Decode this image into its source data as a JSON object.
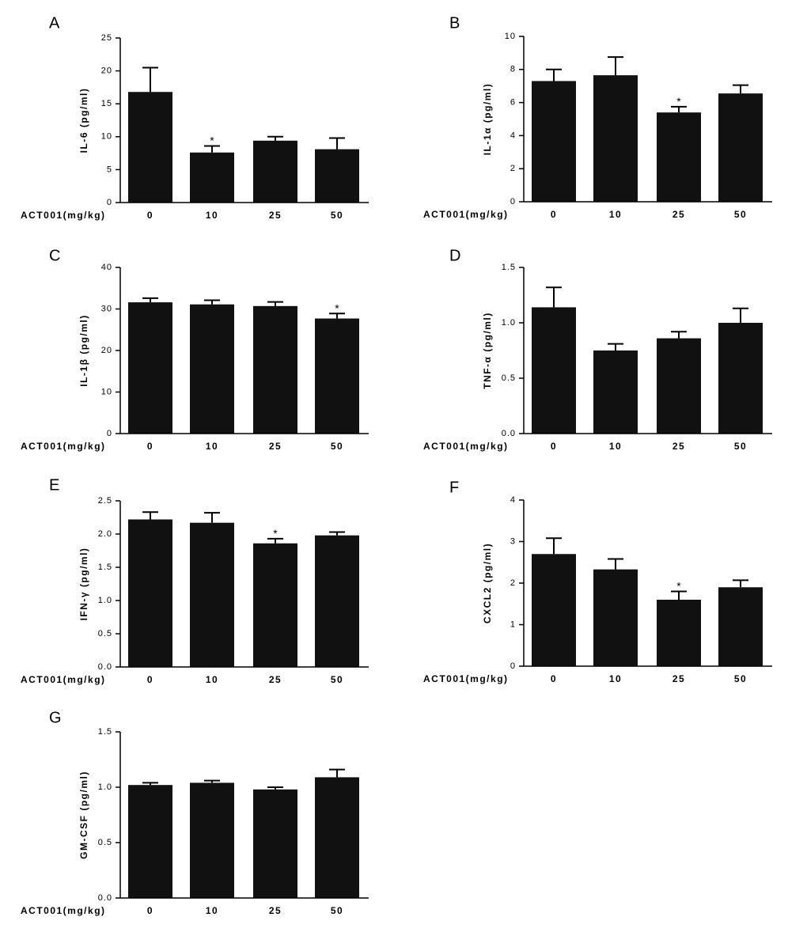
{
  "colors": {
    "bar": "#111111",
    "axis": "#000000",
    "background": "#ffffff"
  },
  "chart_data": [
    {
      "panel": "A",
      "type": "bar",
      "xlabel": "ACT001(mg/kg)",
      "ylabel": "IL-6 (pg/ml)",
      "categories": [
        "0",
        "10",
        "25",
        "50"
      ],
      "values": [
        16.8,
        7.6,
        9.4,
        8.1
      ],
      "errors": [
        3.7,
        1.0,
        0.6,
        1.7
      ],
      "significance": [
        "",
        "*",
        "",
        ""
      ],
      "ylim": [
        0,
        25
      ],
      "yticks": [
        "0",
        "5",
        "10",
        "15",
        "20",
        "25"
      ]
    },
    {
      "panel": "B",
      "type": "bar",
      "xlabel": "ACT001(mg/kg)",
      "ylabel": "IL-1α (pg/ml)",
      "categories": [
        "0",
        "10",
        "25",
        "50"
      ],
      "values": [
        7.3,
        7.65,
        5.4,
        6.55
      ],
      "errors": [
        0.7,
        1.1,
        0.35,
        0.5
      ],
      "significance": [
        "",
        "",
        "*",
        ""
      ],
      "ylim": [
        0,
        10
      ],
      "yticks": [
        "0",
        "2",
        "4",
        "6",
        "8",
        "10"
      ]
    },
    {
      "panel": "C",
      "type": "bar",
      "xlabel": "ACT001(mg/kg)",
      "ylabel": "IL-1β (pg/ml)",
      "categories": [
        "0",
        "10",
        "25",
        "50"
      ],
      "values": [
        31.6,
        31.1,
        30.7,
        27.7
      ],
      "errors": [
        1.0,
        1.0,
        1.0,
        1.2
      ],
      "significance": [
        "",
        "",
        "",
        "*"
      ],
      "ylim": [
        0,
        40
      ],
      "yticks": [
        "0",
        "10",
        "20",
        "30",
        "40"
      ]
    },
    {
      "panel": "D",
      "type": "bar",
      "xlabel": "ACT001(mg/kg)",
      "ylabel": "TNF-α (pg/ml)",
      "categories": [
        "0",
        "10",
        "25",
        "50"
      ],
      "values": [
        1.14,
        0.75,
        0.86,
        1.0
      ],
      "errors": [
        0.18,
        0.06,
        0.06,
        0.13
      ],
      "significance": [
        "",
        "",
        "",
        ""
      ],
      "ylim": [
        0,
        1.5
      ],
      "yticks": [
        "0.0",
        "0.5",
        "1.0",
        "1.5"
      ]
    },
    {
      "panel": "E",
      "type": "bar",
      "xlabel": "ACT001(mg/kg)",
      "ylabel": "IFN-γ (pg/ml)",
      "categories": [
        "0",
        "10",
        "25",
        "50"
      ],
      "values": [
        2.22,
        2.17,
        1.86,
        1.98
      ],
      "errors": [
        0.11,
        0.15,
        0.07,
        0.05
      ],
      "significance": [
        "",
        "",
        "*",
        ""
      ],
      "ylim": [
        0,
        2.5
      ],
      "yticks": [
        "0.0",
        "0.5",
        "1.0",
        "1.5",
        "2.0",
        "2.5"
      ]
    },
    {
      "panel": "F",
      "type": "bar",
      "xlabel": "ACT001(mg/kg)",
      "ylabel": "CXCL2 (pg/ml)",
      "categories": [
        "0",
        "10",
        "25",
        "50"
      ],
      "values": [
        2.7,
        2.33,
        1.6,
        1.9
      ],
      "errors": [
        0.38,
        0.25,
        0.2,
        0.17
      ],
      "significance": [
        "",
        "",
        "*",
        ""
      ],
      "ylim": [
        0,
        4
      ],
      "yticks": [
        "0",
        "1",
        "2",
        "3",
        "4"
      ]
    },
    {
      "panel": "G",
      "type": "bar",
      "xlabel": "ACT001(mg/kg)",
      "ylabel": "GM-CSF (pg/ml)",
      "categories": [
        "0",
        "10",
        "25",
        "50"
      ],
      "values": [
        1.02,
        1.04,
        0.98,
        1.09
      ],
      "errors": [
        0.02,
        0.02,
        0.02,
        0.07
      ],
      "significance": [
        "",
        "",
        "",
        ""
      ],
      "ylim": [
        0,
        1.5
      ],
      "yticks": [
        "0.0",
        "0.5",
        "1.0",
        "1.5"
      ]
    }
  ]
}
